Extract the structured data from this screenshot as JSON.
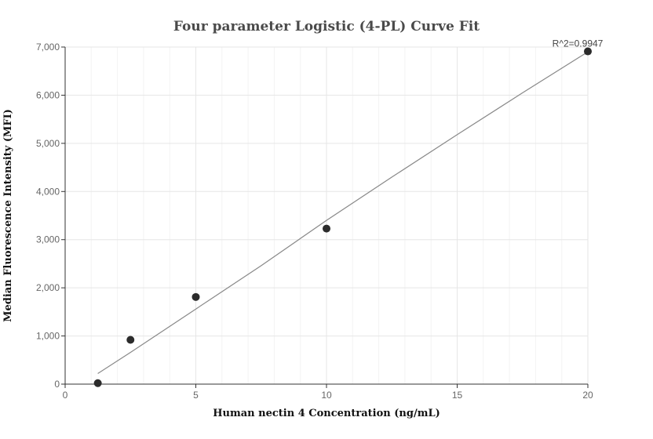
{
  "chart_data": {
    "type": "scatter",
    "title": "Four parameter Logistic (4-PL) Curve Fit",
    "xlabel": "Human nectin 4 Concentration (ng/mL)",
    "ylabel": "Median Fluorescence Intensity (MFI)",
    "xlim": [
      0,
      20
    ],
    "ylim": [
      0,
      7000
    ],
    "x_ticks": [
      0,
      5,
      10,
      15,
      20
    ],
    "x_tick_labels": [
      "0",
      "5",
      "10",
      "15",
      "20"
    ],
    "y_ticks": [
      0,
      1000,
      2000,
      3000,
      4000,
      5000,
      6000,
      7000
    ],
    "y_tick_labels": [
      "0",
      "1,000",
      "2,000",
      "3,000",
      "4,000",
      "5,000",
      "6,000",
      "7,000"
    ],
    "grid": true,
    "series": [
      {
        "points": [
          {
            "x": 1.25,
            "y": 20
          },
          {
            "x": 2.5,
            "y": 920
          },
          {
            "x": 5,
            "y": 1810
          },
          {
            "x": 10,
            "y": 3230
          },
          {
            "x": 20,
            "y": 6910
          }
        ]
      }
    ],
    "fit_curve": {
      "points": [
        {
          "x": 1.25,
          "y": 220
        },
        {
          "x": 2.5,
          "y": 660
        },
        {
          "x": 5,
          "y": 1560
        },
        {
          "x": 7.5,
          "y": 2460
        },
        {
          "x": 10,
          "y": 3400
        },
        {
          "x": 12.5,
          "y": 4300
        },
        {
          "x": 15,
          "y": 5180
        },
        {
          "x": 17.5,
          "y": 6050
        },
        {
          "x": 20,
          "y": 6900
        }
      ]
    },
    "annotation": {
      "text": "R^2=0.9947"
    }
  }
}
